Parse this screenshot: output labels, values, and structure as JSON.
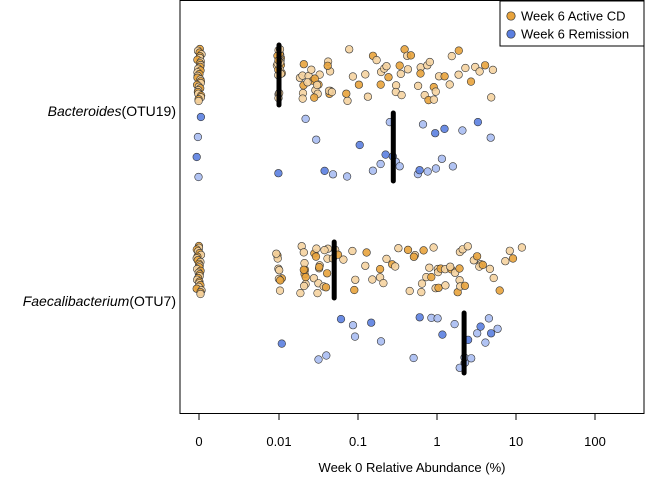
{
  "chart_data": {
    "type": "scatter",
    "orientation": "horizontal-strip",
    "xlabel": "Week 0 Relative Abundance (%)",
    "x_scale": "log-with-zero",
    "x_ticks": [
      "0",
      "0.01",
      "0.1",
      "1",
      "10",
      "100"
    ],
    "legend": {
      "placement": "top-right",
      "entries": [
        {
          "name": "Week 6 Active CD",
          "color": "#E8A33C"
        },
        {
          "name": "Week 6 Remission",
          "color": "#5B7FE0"
        }
      ]
    },
    "groups": [
      {
        "genus": "Bacteroides",
        "otu": "(OTU19)",
        "series": [
          {
            "name": "Week 6 Active CD",
            "color": "#E8A33C",
            "zero_count": 30,
            "median": 0.01,
            "values": [
              0.01,
              0.01,
              0.01,
              0.01,
              0.01,
              0.01,
              0.01,
              0.01,
              0.01,
              0.01,
              0.01,
              0.01,
              0.01,
              0.01,
              0.01,
              0.01,
              0.01,
              0.01,
              0.01,
              0.01,
              0.02,
              0.02,
              0.02,
              0.02,
              0.02,
              0.02,
              0.025,
              0.025,
              0.025,
              0.025,
              0.03,
              0.03,
              0.03,
              0.03,
              0.03,
              0.03,
              0.03,
              0.045,
              0.045,
              0.045,
              0.045,
              0.045,
              0.045,
              0.045,
              0.07,
              0.07,
              0.08,
              0.09,
              0.1,
              0.12,
              0.13,
              0.15,
              0.17,
              0.19,
              0.2,
              0.22,
              0.24,
              0.26,
              0.28,
              0.3,
              0.32,
              0.35,
              0.38,
              0.4,
              0.42,
              0.45,
              0.5,
              0.55,
              0.6,
              0.65,
              0.7,
              0.75,
              0.8,
              0.85,
              0.9,
              0.95,
              1.0,
              1.1,
              1.2,
              1.4,
              1.6,
              1.8,
              2.0,
              2.3,
              2.6,
              3.0,
              3.5,
              4.0,
              4.5,
              5.0
            ]
          },
          {
            "name": "Week 6 Remission",
            "color": "#5B7FE0",
            "zero_count": 4,
            "median": 0.28,
            "values": [
              0.01,
              0.02,
              0.03,
              0.04,
              0.05,
              0.07,
              0.1,
              0.15,
              0.2,
              0.22,
              0.25,
              0.28,
              0.3,
              0.35,
              0.55,
              0.6,
              0.7,
              0.8,
              0.9,
              1.0,
              1.1,
              1.2,
              1.5,
              2.0,
              3.5,
              5.0
            ]
          }
        ]
      },
      {
        "genus": "Faecalibacterium",
        "otu": "(OTU7)",
        "series": [
          {
            "name": "Week 6 Active CD",
            "color": "#E8A33C",
            "zero_count": 28,
            "median": 0.05,
            "values": [
              0.01,
              0.01,
              0.01,
              0.01,
              0.01,
              0.01,
              0.01,
              0.01,
              0.01,
              0.02,
              0.02,
              0.02,
              0.02,
              0.02,
              0.02,
              0.02,
              0.02,
              0.02,
              0.02,
              0.03,
              0.03,
              0.03,
              0.03,
              0.03,
              0.03,
              0.03,
              0.03,
              0.03,
              0.04,
              0.04,
              0.04,
              0.04,
              0.04,
              0.04,
              0.05,
              0.05,
              0.06,
              0.07,
              0.08,
              0.09,
              0.1,
              0.12,
              0.14,
              0.16,
              0.18,
              0.2,
              0.22,
              0.25,
              0.28,
              0.3,
              0.35,
              0.4,
              0.45,
              0.5,
              0.55,
              0.6,
              0.65,
              0.7,
              0.75,
              0.8,
              0.85,
              0.9,
              0.95,
              1.0,
              1.05,
              1.1,
              1.15,
              1.2,
              1.3,
              1.4,
              1.5,
              1.6,
              1.7,
              1.8,
              1.9,
              2.0,
              2.1,
              2.2,
              2.4,
              2.6,
              2.8,
              3.0,
              3.3,
              3.6,
              4.0,
              4.5,
              5.0,
              6.0,
              7.0,
              8.0,
              9.0,
              12.0
            ]
          },
          {
            "name": "Week 6 Remission",
            "color": "#5B7FE0",
            "zero_count": 0,
            "median": 2.2,
            "values": [
              0.01,
              0.03,
              0.04,
              0.06,
              0.08,
              0.1,
              0.15,
              0.2,
              0.5,
              0.6,
              0.8,
              1.0,
              1.2,
              1.8,
              2.0,
              2.2,
              2.3,
              2.4,
              2.5,
              2.8,
              3.0,
              3.5,
              4.0,
              4.5,
              5.0,
              5.5
            ]
          }
        ]
      }
    ]
  }
}
